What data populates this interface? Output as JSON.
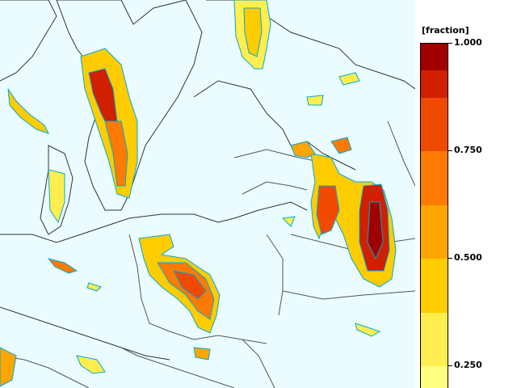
{
  "legend": {
    "unit": "[fraction]",
    "ticks": [
      {
        "value": 1.0,
        "label": "1.000"
      },
      {
        "value": 0.75,
        "label": "0.750"
      },
      {
        "value": 0.5,
        "label": "0.500"
      },
      {
        "value": 0.25,
        "label": "0.250"
      }
    ],
    "bins": [
      {
        "from": 0.2,
        "to": 0.25,
        "color": "#ffff80"
      },
      {
        "from": 0.25,
        "to": 0.375,
        "color": "#ffee4d"
      },
      {
        "from": 0.375,
        "to": 0.5,
        "color": "#ffcc00"
      },
      {
        "from": 0.5,
        "to": 0.625,
        "color": "#ffa500"
      },
      {
        "from": 0.625,
        "to": 0.75,
        "color": "#ff7a00"
      },
      {
        "from": 0.75,
        "to": 0.875,
        "color": "#f04a00"
      },
      {
        "from": 0.875,
        "to": 0.9375,
        "color": "#d02000"
      },
      {
        "from": 0.9375,
        "to": 1.0,
        "color": "#a00000"
      }
    ]
  },
  "map": {
    "background": "#eafcff",
    "contour_color": "#00aadd",
    "border_color": "#444444"
  }
}
